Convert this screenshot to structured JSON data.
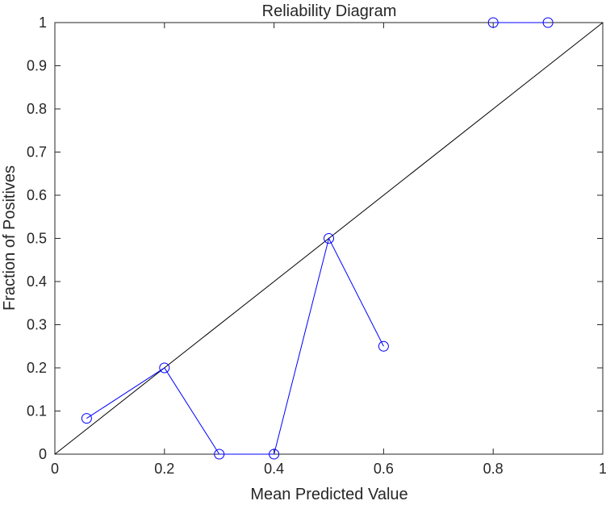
{
  "chart_data": {
    "type": "line",
    "title": "Reliability Diagram",
    "xlabel": "Mean Predicted Value",
    "ylabel": "Fraction of Positives",
    "xlim": [
      0,
      1
    ],
    "ylim": [
      0,
      1
    ],
    "x_ticks": [
      0,
      0.2,
      0.4,
      0.6,
      0.8,
      1
    ],
    "y_ticks": [
      0,
      0.1,
      0.2,
      0.3,
      0.4,
      0.5,
      0.6,
      0.7,
      0.8,
      0.9,
      1
    ],
    "x_tick_labels": [
      "0",
      "0.2",
      "0.4",
      "0.6",
      "0.8",
      "1"
    ],
    "y_tick_labels": [
      "0",
      "0.1",
      "0.2",
      "0.3",
      "0.4",
      "0.5",
      "0.6",
      "0.7",
      "0.8",
      "0.9",
      "1"
    ],
    "grid": false,
    "reference_line": {
      "x": [
        0,
        1
      ],
      "y": [
        0,
        1
      ],
      "color": "#000000"
    },
    "segments": [
      {
        "color": "#0000ff",
        "marker": "circle",
        "points": [
          {
            "x": 0.058,
            "y": 0.083
          },
          {
            "x": 0.2,
            "y": 0.2
          },
          {
            "x": 0.3,
            "y": 0.0
          },
          {
            "x": 0.4,
            "y": 0.0
          },
          {
            "x": 0.5,
            "y": 0.5
          },
          {
            "x": 0.6,
            "y": 0.25
          }
        ]
      },
      {
        "color": "#0000ff",
        "marker": "circle",
        "points": [
          {
            "x": 0.8,
            "y": 1.0
          },
          {
            "x": 0.9,
            "y": 1.0
          }
        ]
      }
    ]
  }
}
